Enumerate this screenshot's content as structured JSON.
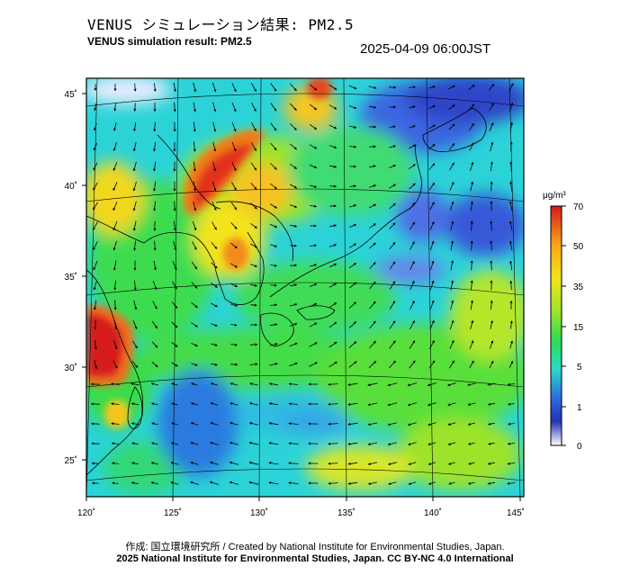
{
  "header": {
    "title_jp": "VENUS シミュレーション結果: PM2.5",
    "title_en": "VENUS simulation result: PM2.5",
    "timestamp": "2025-04-09 06:00JST"
  },
  "map": {
    "lon_labels": [
      "120˚",
      "125˚",
      "130˚",
      "135˚",
      "140˚",
      "145˚"
    ],
    "lat_labels": [
      "45˚",
      "40˚",
      "35˚",
      "30˚",
      "25˚"
    ],
    "lon_range": [
      120,
      145
    ],
    "lat_range": [
      23,
      46
    ],
    "colors": {
      "ocean_base": "#2bd3d8",
      "frame": "#000000",
      "coast": "#000000",
      "wind_arrow": "#000000"
    }
  },
  "colorbar": {
    "unit": "μg/m³",
    "tick_labels": [
      "70",
      "50",
      "35",
      "15",
      "5",
      "1",
      "0"
    ],
    "stops": [
      "#d5171a",
      "#f8a518",
      "#f2e31c",
      "#9de32b",
      "#2edb57",
      "#2cd9c8",
      "#2d6de0",
      "#2233b4",
      "#ffffff"
    ]
  },
  "footer": {
    "credit_line1": "作成: 国立環境研究所 / Created by National Institute for Environmental Studies, Japan.",
    "credit_line2": "2025 National Institute for Environmental Studies, Japan. CC BY-NC 4.0 International"
  }
}
